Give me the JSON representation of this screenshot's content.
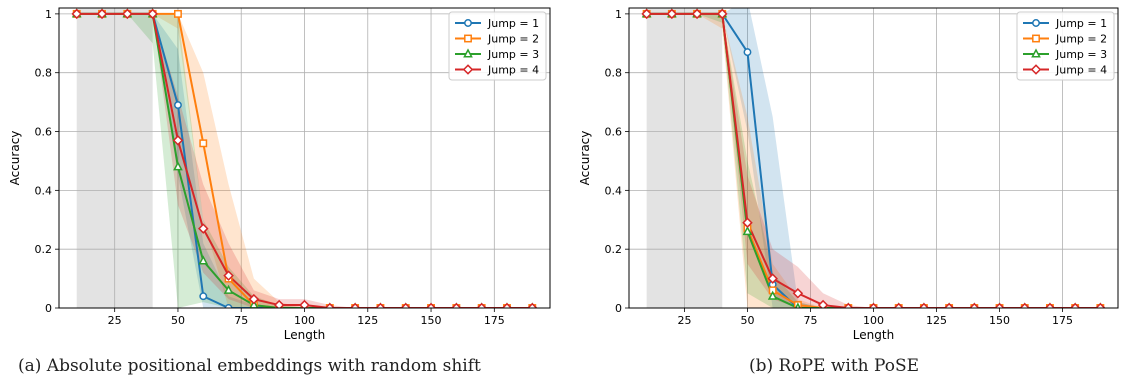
{
  "captions": [
    "(a) Absolute positional embeddings with random shift",
    "(b) RoPE with PoSE"
  ],
  "chart_data": [
    {
      "type": "line",
      "title": "",
      "xlabel": "Length",
      "ylabel": "Accuracy",
      "xlim": [
        3,
        197
      ],
      "ylim": [
        0,
        1.02
      ],
      "xticks": [
        25,
        50,
        75,
        100,
        125,
        150,
        175
      ],
      "yticks": [
        0.0,
        0.2,
        0.4,
        0.6,
        0.8,
        1.0
      ],
      "grid": true,
      "legend_position": "top-right",
      "shaded_region": [
        10,
        40
      ],
      "x": [
        10,
        20,
        30,
        40,
        50,
        60,
        70,
        80,
        90,
        100,
        110,
        120,
        130,
        140,
        150,
        160,
        170,
        180,
        190
      ],
      "series": [
        {
          "name": "Jump = 1",
          "color": "#1f77b4",
          "marker": "circle",
          "values": [
            1,
            1,
            1,
            1,
            0.69,
            0.04,
            0,
            0,
            0,
            0,
            0,
            0,
            0,
            0,
            0,
            0,
            0,
            0,
            0
          ],
          "upper": [
            1,
            1,
            1,
            1,
            0.88,
            0.22,
            0.04,
            0.01,
            0,
            0,
            0,
            0,
            0,
            0,
            0,
            0,
            0,
            0,
            0
          ],
          "lower": [
            1,
            1,
            1,
            1,
            0.45,
            0,
            0,
            0,
            0,
            0,
            0,
            0,
            0,
            0,
            0,
            0,
            0,
            0,
            0
          ]
        },
        {
          "name": "Jump = 2",
          "color": "#ff7f0e",
          "marker": "square",
          "values": [
            1,
            1,
            1,
            1,
            1,
            0.56,
            0.1,
            0.01,
            0,
            0,
            0,
            0,
            0,
            0,
            0,
            0,
            0,
            0,
            0
          ],
          "upper": [
            1,
            1,
            1,
            1,
            1,
            0.8,
            0.42,
            0.1,
            0.02,
            0,
            0,
            0,
            0,
            0,
            0,
            0,
            0,
            0,
            0
          ],
          "lower": [
            1,
            1,
            1,
            1,
            0.95,
            0.3,
            0,
            0,
            0,
            0,
            0,
            0,
            0,
            0,
            0,
            0,
            0,
            0,
            0
          ]
        },
        {
          "name": "Jump = 3",
          "color": "#2ca02c",
          "marker": "triangle",
          "values": [
            1,
            1,
            1,
            1,
            0.48,
            0.16,
            0.06,
            0.01,
            0,
            0,
            0,
            0,
            0,
            0,
            0,
            0,
            0,
            0,
            0
          ],
          "upper": [
            1,
            1,
            1,
            1,
            1,
            0.3,
            0.14,
            0.04,
            0.01,
            0,
            0,
            0,
            0,
            0,
            0,
            0,
            0,
            0,
            0
          ],
          "lower": [
            1,
            1,
            1,
            0.9,
            0,
            0.02,
            0,
            0,
            0,
            0,
            0,
            0,
            0,
            0,
            0,
            0,
            0,
            0,
            0
          ]
        },
        {
          "name": "Jump = 4",
          "color": "#d62728",
          "marker": "diamond",
          "values": [
            1,
            1,
            1,
            1,
            0.57,
            0.27,
            0.11,
            0.03,
            0.01,
            0.01,
            0,
            0,
            0,
            0,
            0,
            0,
            0,
            0,
            0
          ],
          "upper": [
            1,
            1,
            1,
            1,
            0.72,
            0.42,
            0.22,
            0.06,
            0.03,
            0.03,
            0.01,
            0,
            0,
            0,
            0,
            0,
            0,
            0,
            0
          ],
          "lower": [
            1,
            1,
            1,
            1,
            0.35,
            0.12,
            0.03,
            0,
            0,
            0,
            0,
            0,
            0,
            0,
            0,
            0,
            0,
            0,
            0
          ]
        }
      ]
    },
    {
      "type": "line",
      "title": "",
      "xlabel": "Length",
      "ylabel": "Accuracy",
      "xlim": [
        3,
        197
      ],
      "ylim": [
        0,
        1.02
      ],
      "xticks": [
        25,
        50,
        75,
        100,
        125,
        150,
        175
      ],
      "yticks": [
        0.0,
        0.2,
        0.4,
        0.6,
        0.8,
        1.0
      ],
      "grid": true,
      "legend_position": "top-right",
      "shaded_region": [
        10,
        40
      ],
      "x": [
        10,
        20,
        30,
        40,
        50,
        60,
        70,
        80,
        90,
        100,
        110,
        120,
        130,
        140,
        150,
        160,
        170,
        180,
        190
      ],
      "series": [
        {
          "name": "Jump = 1",
          "color": "#1f77b4",
          "marker": "circle",
          "values": [
            1,
            1,
            1,
            1,
            0.87,
            0.08,
            0,
            0,
            0,
            0,
            0,
            0,
            0,
            0,
            0,
            0,
            0,
            0,
            0
          ],
          "upper": [
            1,
            1,
            1,
            1,
            1.05,
            0.65,
            0.02,
            0,
            0,
            0,
            0,
            0,
            0,
            0,
            0,
            0,
            0,
            0,
            0
          ],
          "lower": [
            1,
            1,
            1,
            1,
            0.6,
            0,
            0,
            0,
            0,
            0,
            0,
            0,
            0,
            0,
            0,
            0,
            0,
            0,
            0
          ]
        },
        {
          "name": "Jump = 2",
          "color": "#ff7f0e",
          "marker": "square",
          "values": [
            1,
            1,
            1,
            1,
            0.27,
            0.06,
            0.01,
            0,
            0,
            0,
            0,
            0,
            0,
            0,
            0,
            0,
            0,
            0,
            0
          ],
          "upper": [
            1,
            1,
            1,
            1,
            0.65,
            0.15,
            0.03,
            0,
            0,
            0,
            0,
            0,
            0,
            0,
            0,
            0,
            0,
            0,
            0
          ],
          "lower": [
            1,
            1,
            1,
            0.95,
            0,
            0,
            0,
            0,
            0,
            0,
            0,
            0,
            0,
            0,
            0,
            0,
            0,
            0,
            0
          ]
        },
        {
          "name": "Jump = 3",
          "color": "#2ca02c",
          "marker": "triangle",
          "values": [
            1,
            1,
            1,
            1,
            0.26,
            0.04,
            0,
            0,
            0,
            0,
            0,
            0,
            0,
            0,
            0,
            0,
            0,
            0,
            0
          ],
          "upper": [
            1,
            1,
            1,
            1,
            0.5,
            0.12,
            0.02,
            0,
            0,
            0,
            0,
            0,
            0,
            0,
            0,
            0,
            0,
            0,
            0
          ],
          "lower": [
            1,
            1,
            1,
            0.97,
            0.05,
            0,
            0,
            0,
            0,
            0,
            0,
            0,
            0,
            0,
            0,
            0,
            0,
            0,
            0
          ]
        },
        {
          "name": "Jump = 4",
          "color": "#d62728",
          "marker": "diamond",
          "values": [
            1,
            1,
            1,
            1,
            0.29,
            0.1,
            0.05,
            0.01,
            0,
            0,
            0,
            0,
            0,
            0,
            0,
            0,
            0,
            0,
            0
          ],
          "upper": [
            1,
            1,
            1,
            1,
            0.45,
            0.2,
            0.14,
            0.05,
            0.01,
            0,
            0,
            0,
            0,
            0,
            0,
            0,
            0,
            0,
            0
          ],
          "lower": [
            1,
            1,
            1,
            1,
            0.15,
            0.03,
            0,
            0,
            0,
            0,
            0,
            0,
            0,
            0,
            0,
            0,
            0,
            0,
            0
          ]
        }
      ]
    }
  ]
}
